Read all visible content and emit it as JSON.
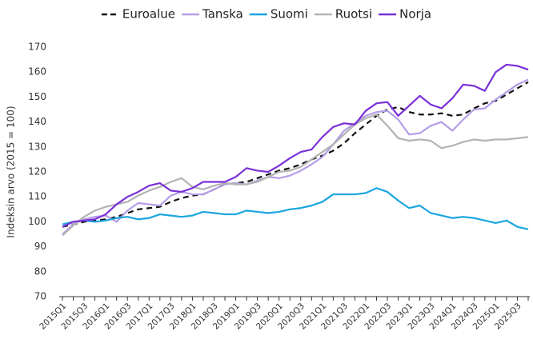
{
  "chart_data": {
    "type": "line",
    "y_label": "Indeksin arvo (2015 = 100)",
    "categories": [
      "2015Q1",
      null,
      "2015Q3",
      null,
      "2016Q1",
      null,
      "2016Q3",
      null,
      "2017Q1",
      null,
      "2017Q3",
      null,
      "2018Q1",
      null,
      "2018Q3",
      null,
      "2019Q1",
      null,
      "2019Q3",
      null,
      "2020Q1",
      null,
      "2020Q3",
      null,
      "2021Q1",
      null,
      "2021Q3",
      null,
      "2022Q1",
      null,
      "2022Q3",
      null,
      "2023Q1",
      null,
      "2023Q3",
      null,
      "2024Q1",
      null,
      "2024Q3",
      null,
      "2025Q1",
      null,
      "2025Q3",
      null
    ],
    "series": [
      {
        "name": "Euroalue",
        "color": "#111111",
        "dashed": true,
        "values": [
          98,
          99,
          100,
          100.5,
          101,
          102,
          103.5,
          105,
          105.5,
          106,
          108,
          109.5,
          110.5,
          111,
          113,
          115,
          115.5,
          116,
          117.5,
          119,
          120.5,
          121.5,
          123,
          125,
          126.5,
          128.5,
          131.5,
          135.5,
          139,
          142.5,
          145,
          146,
          144,
          143,
          143,
          143.5,
          142.5,
          143,
          145.5,
          147.5,
          148.5,
          151,
          153.5,
          156
        ]
      },
      {
        "name": "Tanska",
        "color": "#b49ee6",
        "dashed": false,
        "values": [
          95,
          99,
          101,
          102,
          102.5,
          100,
          104.5,
          107.5,
          107,
          106.5,
          110.5,
          112,
          111,
          111,
          113,
          115,
          115.5,
          115,
          116.5,
          118,
          117.5,
          118.5,
          120.5,
          123,
          126,
          131,
          136.5,
          139.5,
          142.5,
          144,
          144.5,
          141,
          135,
          135.5,
          138.5,
          140,
          136.5,
          141,
          145,
          145.5,
          149,
          152,
          155,
          157
        ]
      },
      {
        "name": "Suomi",
        "color": "#1aa6df",
        "dashed": false,
        "values": [
          99,
          100,
          100.5,
          100,
          100.5,
          101.5,
          102,
          101,
          101.5,
          103,
          102.5,
          102,
          102.5,
          104,
          103.5,
          103,
          103,
          104.5,
          104,
          103.5,
          104,
          105,
          105.5,
          106.5,
          108,
          111,
          111,
          111,
          111.5,
          113.5,
          112,
          108.5,
          105.5,
          106.5,
          103.5,
          102.5,
          101.5,
          102,
          101.5,
          100.5,
          99.5,
          100.5,
          98,
          97
        ]
      },
      {
        "name": "Ruotsi",
        "color": "#b3b3b3",
        "dashed": false,
        "values": [
          94.5,
          98.5,
          102,
          104.5,
          106,
          107,
          108,
          110.5,
          112.5,
          114,
          116,
          117.5,
          114,
          113,
          114.5,
          115.5,
          115,
          115,
          116,
          118,
          120,
          120.5,
          122,
          125,
          128,
          131,
          135,
          139,
          141.5,
          143,
          138.5,
          133.5,
          132.5,
          133,
          132.5,
          129.5,
          130.5,
          132,
          133,
          132.5,
          133,
          133,
          133.5,
          134
        ]
      },
      {
        "name": "Norja",
        "color": "#7b30d8",
        "dashed": false,
        "values": [
          98,
          100,
          100.5,
          101,
          103,
          107,
          110,
          112,
          114.5,
          115.5,
          112.5,
          112,
          113.5,
          116,
          116,
          116,
          118,
          121.5,
          120.5,
          120,
          122.5,
          125.5,
          128,
          129,
          134,
          138,
          139.5,
          139,
          144.5,
          147.5,
          148,
          142.5,
          146.5,
          150.5,
          147,
          145.5,
          149.5,
          155,
          154.5,
          152.5,
          160,
          163,
          162.5,
          161
        ]
      }
    ],
    "ylim": [
      70,
      170
    ],
    "yticks": [
      70,
      80,
      90,
      100,
      110,
      120,
      130,
      140,
      150,
      160,
      170
    ],
    "grid": false,
    "legend": "top"
  }
}
